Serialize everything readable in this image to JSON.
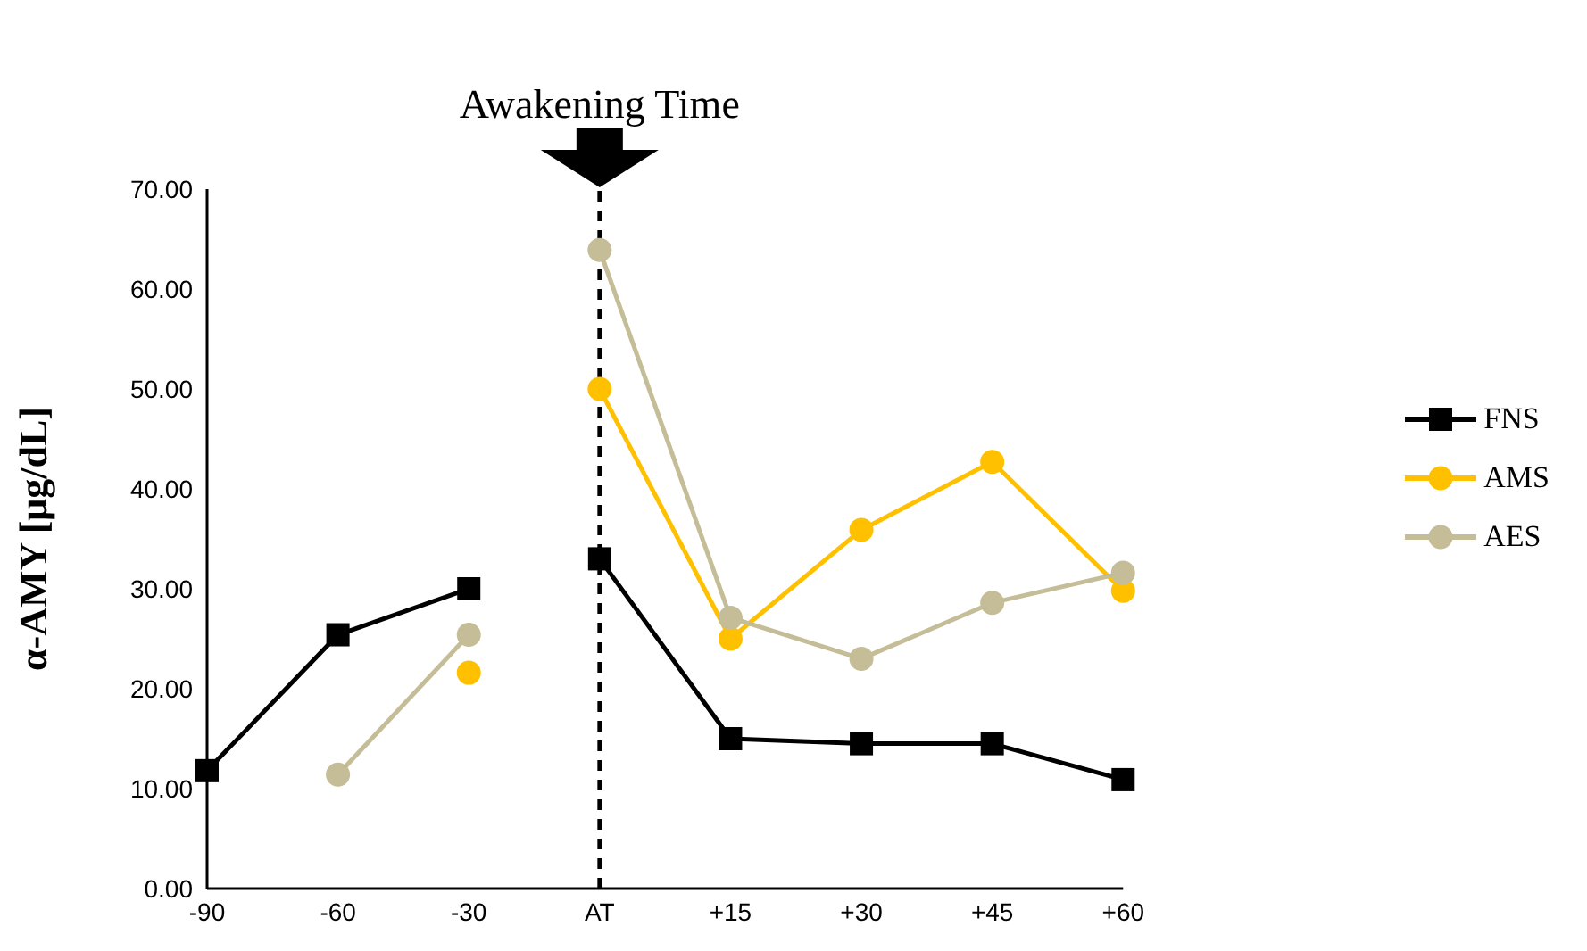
{
  "chart_data": {
    "type": "line",
    "ylabel": "α-AMY [μg/dL]",
    "categories": [
      "-90",
      "-60",
      "-30",
      "AT",
      "+15",
      "+30",
      "+45",
      "+60"
    ],
    "ylim": [
      0,
      70
    ],
    "yticks": [
      {
        "value": 0,
        "label": "0.00"
      },
      {
        "value": 10,
        "label": "10.00"
      },
      {
        "value": 20,
        "label": "20.00"
      },
      {
        "value": 30,
        "label": "30.00"
      },
      {
        "value": 40,
        "label": "40.00"
      },
      {
        "value": 50,
        "label": "50.00"
      },
      {
        "value": 60,
        "label": "60.00"
      },
      {
        "value": 70,
        "label": "70.00"
      }
    ],
    "grid": false,
    "legend": "right",
    "series": [
      {
        "color": "#000000",
        "marker": "square",
        "values": [
          11.8,
          25.4,
          30.0,
          null,
          null,
          null,
          null,
          null
        ]
      },
      {
        "name": "FNS",
        "color": "#000000",
        "marker": "square",
        "values": [
          null,
          null,
          null,
          33.0,
          15.0,
          14.5,
          14.5,
          10.9
        ]
      },
      {
        "color": "#ffc000",
        "marker": "circle",
        "values": [
          null,
          null,
          21.6,
          null,
          null,
          null,
          null,
          null
        ]
      },
      {
        "name": "AMS",
        "color": "#ffc000",
        "marker": "circle",
        "values": [
          null,
          null,
          null,
          50.0,
          25.0,
          35.9,
          42.7,
          29.8
        ]
      },
      {
        "color": "#c4bd97",
        "marker": "circle",
        "values": [
          null,
          11.4,
          25.4,
          null,
          null,
          null,
          null,
          null
        ]
      },
      {
        "name": "AES",
        "color": "#c4bd97",
        "marker": "circle",
        "values": [
          null,
          null,
          null,
          63.9,
          27.1,
          23.0,
          28.6,
          31.6
        ]
      }
    ],
    "ref_lines": [
      {
        "axis": "x",
        "value": "AT",
        "label": "Awakening Time",
        "color": "#000000",
        "line_style": "dashed"
      }
    ]
  }
}
